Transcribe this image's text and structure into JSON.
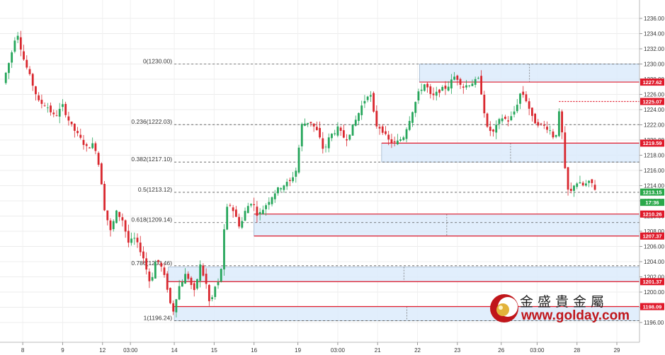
{
  "chart_data": {
    "type": "candlestick",
    "title": "",
    "xlabel": "",
    "ylabel": "",
    "ylim": [
      1195,
      1237
    ],
    "y_ticks": [
      1196,
      1198,
      1200,
      1202,
      1204,
      1206,
      1208,
      1210,
      1212,
      1214,
      1216,
      1218,
      1220,
      1222,
      1224,
      1226,
      1228,
      1230,
      1232,
      1234,
      1236
    ],
    "y_tick_labels": [
      "1196.00",
      "1198.00",
      "1200.00",
      "1202.00",
      "1204.00",
      "1206.00",
      "1208.00",
      "1210.00",
      "1212.00",
      "1214.00",
      "1216.00",
      "1218.00",
      "1220.00",
      "1222.00",
      "1224.00",
      "1226.00",
      "1228.00",
      "1230.00",
      "1232.00",
      "1234.00",
      "1236.00"
    ],
    "x_ticks": [
      {
        "label": "8",
        "day": 0.5
      },
      {
        "label": "9",
        "day": 1.5
      },
      {
        "label": "12",
        "day": 2.5
      },
      {
        "label": "03:00",
        "day": 3.2
      },
      {
        "label": "14",
        "day": 4.3
      },
      {
        "label": "15",
        "day": 5.3
      },
      {
        "label": "16",
        "day": 6.3
      },
      {
        "label": "19",
        "day": 7.4
      },
      {
        "label": "03:00",
        "day": 8.4
      },
      {
        "label": "21",
        "day": 9.4
      },
      {
        "label": "22",
        "day": 10.4
      },
      {
        "label": "23",
        "day": 11.4
      },
      {
        "label": "26",
        "day": 12.5
      },
      {
        "label": "03:00",
        "day": 13.4
      },
      {
        "label": "28",
        "day": 14.4
      },
      {
        "label": "29",
        "day": 15.4
      }
    ],
    "x_range_days": [
      0,
      16.2
    ],
    "fib_levels": [
      {
        "label": "0(1230.00)",
        "value": 1230.0
      },
      {
        "label": "0.236(1222.03)",
        "value": 1222.03
      },
      {
        "label": "0.382(1217.10)",
        "value": 1217.1
      },
      {
        "label": "0.5(1213.12)",
        "value": 1213.12
      },
      {
        "label": "0.618(1209.14)",
        "value": 1209.14
      },
      {
        "label": "0.786(1203.46)",
        "value": 1203.46
      },
      {
        "label": "1(1196.24)",
        "value": 1196.24
      }
    ],
    "fib_start_day": 4.3,
    "zones": [
      {
        "from_day": 10.45,
        "top": 1230.0,
        "bottom": 1227.62
      },
      {
        "from_day": 9.5,
        "top": 1219.59,
        "bottom": 1217.1
      },
      {
        "from_day": 6.3,
        "top": 1210.26,
        "bottom": 1207.37
      },
      {
        "from_day": 4.15,
        "top": 1203.3,
        "bottom": 1201.37
      },
      {
        "from_day": 4.3,
        "top": 1198.09,
        "bottom": 1196.24
      }
    ],
    "price_tags": [
      {
        "label": "1227.62",
        "value": 1227.62,
        "color": "#e0192a"
      },
      {
        "label": "1225.07",
        "value": 1225.07,
        "color": "#e0192a"
      },
      {
        "label": "1219.59",
        "value": 1219.59,
        "color": "#e0192a"
      },
      {
        "label": "1213.15",
        "value": 1213.15,
        "color": "#2aa84a"
      },
      {
        "label": "17:36",
        "value": 1211.8,
        "color": "#2aa84a"
      },
      {
        "label": "1210.26",
        "value": 1210.26,
        "color": "#e0192a"
      },
      {
        "label": "1207.37",
        "value": 1207.37,
        "color": "#e0192a"
      },
      {
        "label": "1201.37",
        "value": 1201.37,
        "color": "#e0192a"
      },
      {
        "label": "1198.09",
        "value": 1198.09,
        "color": "#e0192a"
      }
    ],
    "red_lines": [
      {
        "value": 1227.62,
        "from_day": 10.45,
        "dotted": false
      },
      {
        "value": 1225.07,
        "from_day": 13.95,
        "dotted": true
      },
      {
        "value": 1219.59,
        "from_day": 9.5,
        "dotted": false
      },
      {
        "value": 1210.26,
        "from_day": 6.3,
        "dotted": false
      },
      {
        "value": 1207.37,
        "from_day": 6.3,
        "dotted": false
      },
      {
        "value": 1201.37,
        "from_day": 4.15,
        "dotted": false
      },
      {
        "value": 1198.09,
        "from_day": 4.3,
        "dotted": false
      }
    ],
    "current_price": 1213.15,
    "path": [
      [
        0.0,
        1227.5
      ],
      [
        0.2,
        1231.0
      ],
      [
        0.35,
        1234.5
      ],
      [
        0.5,
        1231.0
      ],
      [
        0.7,
        1228.0
      ],
      [
        0.9,
        1225.0
      ],
      [
        1.1,
        1224.5
      ],
      [
        1.3,
        1223.0
      ],
      [
        1.5,
        1224.5
      ],
      [
        1.7,
        1222.0
      ],
      [
        1.9,
        1220.5
      ],
      [
        2.1,
        1219.0
      ],
      [
        2.3,
        1219.5
      ],
      [
        2.45,
        1215.5
      ],
      [
        2.55,
        1211.0
      ],
      [
        2.7,
        1208.0
      ],
      [
        2.85,
        1210.5
      ],
      [
        3.0,
        1209.5
      ],
      [
        3.15,
        1206.5
      ],
      [
        3.3,
        1207.0
      ],
      [
        3.5,
        1205.0
      ],
      [
        3.7,
        1201.0
      ],
      [
        3.85,
        1204.5
      ],
      [
        4.0,
        1203.0
      ],
      [
        4.15,
        1200.0
      ],
      [
        4.25,
        1197.0
      ],
      [
        4.4,
        1200.5
      ],
      [
        4.6,
        1202.5
      ],
      [
        4.8,
        1200.0
      ],
      [
        4.95,
        1203.5
      ],
      [
        5.1,
        1201.0
      ],
      [
        5.2,
        1198.0
      ],
      [
        5.3,
        1200.5
      ],
      [
        5.45,
        1201.5
      ],
      [
        5.55,
        1208.0
      ],
      [
        5.65,
        1212.0
      ],
      [
        5.8,
        1210.5
      ],
      [
        5.95,
        1208.5
      ],
      [
        6.1,
        1211.0
      ],
      [
        6.25,
        1212.0
      ],
      [
        6.4,
        1210.0
      ],
      [
        6.6,
        1211.5
      ],
      [
        6.8,
        1213.0
      ],
      [
        7.0,
        1214.0
      ],
      [
        7.2,
        1214.5
      ],
      [
        7.35,
        1216.0
      ],
      [
        7.5,
        1222.0
      ],
      [
        7.7,
        1222.5
      ],
      [
        7.9,
        1221.0
      ],
      [
        8.05,
        1218.5
      ],
      [
        8.2,
        1220.5
      ],
      [
        8.4,
        1221.5
      ],
      [
        8.6,
        1220.0
      ],
      [
        8.8,
        1222.0
      ],
      [
        9.0,
        1224.5
      ],
      [
        9.2,
        1226.5
      ],
      [
        9.35,
        1222.0
      ],
      [
        9.5,
        1221.5
      ],
      [
        9.65,
        1220.0
      ],
      [
        9.85,
        1219.5
      ],
      [
        10.05,
        1220.5
      ],
      [
        10.25,
        1223.5
      ],
      [
        10.45,
        1226.5
      ],
      [
        10.6,
        1227.5
      ],
      [
        10.75,
        1225.5
      ],
      [
        10.95,
        1226.5
      ],
      [
        11.15,
        1227.0
      ],
      [
        11.35,
        1228.5
      ],
      [
        11.55,
        1227.0
      ],
      [
        11.75,
        1227.5
      ],
      [
        11.95,
        1228.0
      ],
      [
        12.05,
        1224.5
      ],
      [
        12.15,
        1221.5
      ],
      [
        12.3,
        1221.0
      ],
      [
        12.5,
        1223.0
      ],
      [
        12.7,
        1222.5
      ],
      [
        12.85,
        1224.0
      ],
      [
        13.0,
        1226.5
      ],
      [
        13.15,
        1225.0
      ],
      [
        13.3,
        1222.5
      ],
      [
        13.5,
        1222.0
      ],
      [
        13.7,
        1221.5
      ],
      [
        13.85,
        1220.0
      ],
      [
        13.95,
        1223.5
      ],
      [
        14.05,
        1220.0
      ],
      [
        14.1,
        1216.0
      ],
      [
        14.2,
        1212.5
      ],
      [
        14.35,
        1214.5
      ],
      [
        14.55,
        1214.0
      ],
      [
        14.75,
        1214.5
      ],
      [
        14.9,
        1213.15
      ]
    ]
  },
  "logo": {
    "cn_name": "金盛貴金屬",
    "url": "www.golday.com"
  }
}
